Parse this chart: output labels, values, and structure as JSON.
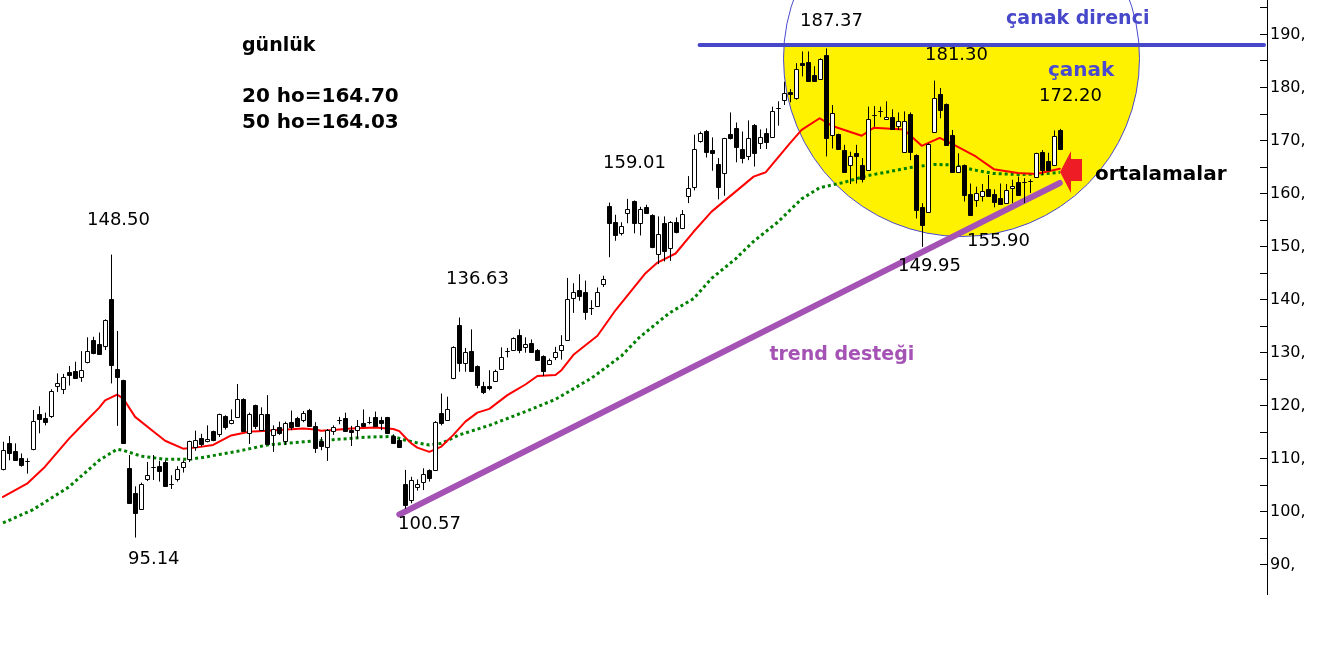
{
  "chart_data": {
    "type": "candlestick",
    "title": "günlük",
    "categories": [
      null,
      null,
      null,
      null,
      null,
      null,
      null,
      null,
      null,
      null,
      null,
      null,
      null,
      null,
      null,
      null,
      null,
      null,
      null,
      null,
      null,
      null,
      null,
      null,
      null,
      null,
      null,
      null,
      null,
      null,
      null,
      null,
      null,
      null,
      null,
      null,
      null,
      null,
      null,
      null,
      null,
      null,
      null,
      null,
      null,
      null,
      null,
      null,
      null,
      null,
      null,
      null,
      null,
      null,
      null,
      null,
      null,
      null,
      null,
      null,
      null,
      null,
      null,
      null,
      null,
      null,
      null,
      null,
      null,
      null,
      null,
      null,
      null,
      null,
      null,
      null,
      null,
      null,
      null,
      null,
      null,
      null,
      null,
      null,
      null,
      null,
      null,
      null,
      null,
      null,
      null,
      null,
      null,
      null,
      null,
      null,
      null,
      null,
      null,
      null,
      null,
      null,
      null,
      null,
      null,
      null,
      null,
      null,
      null,
      null,
      null,
      null,
      null,
      null,
      null,
      null,
      null,
      null,
      null,
      null,
      null,
      null,
      null,
      null,
      null,
      null,
      null,
      null,
      null,
      null,
      null,
      null,
      null,
      null,
      null,
      null,
      null,
      null,
      null,
      null,
      null,
      null,
      null,
      null,
      null,
      null,
      null,
      null,
      null,
      null,
      null,
      null,
      null,
      null,
      null,
      null,
      null,
      null,
      null,
      null,
      null,
      null,
      null,
      null,
      null,
      null,
      null,
      null,
      null,
      null,
      null,
      null,
      null,
      null,
      null,
      null,
      null,
      null,
      null,
      null,
      null,
      null,
      null,
      null,
      null,
      null,
      null,
      null,
      null,
      null,
      null,
      null,
      null,
      null,
      null,
      null,
      null,
      null,
      null,
      null,
      null,
      null,
      null,
      null,
      null,
      null,
      null,
      null,
      null,
      null,
      null
    ],
    "color": "#000000",
    "ohlc": [
      [
        108.0,
        113.2,
        107.8,
        111.6
      ],
      [
        112.9,
        114.3,
        109.7,
        111.1
      ],
      [
        111.4,
        112.9,
        109.6,
        109.7
      ],
      [
        110.1,
        111.0,
        108.5,
        108.9
      ],
      [
        109.6,
        110.1,
        107.2,
        109.6
      ],
      [
        111.8,
        119.2,
        111.6,
        117.2
      ],
      [
        118.4,
        119.9,
        114.8,
        117.5
      ],
      [
        117.7,
        118.7,
        116.3,
        117.0
      ],
      [
        118.1,
        123.1,
        117.7,
        122.8
      ],
      [
        123.8,
        126.1,
        122.6,
        124.2
      ],
      [
        123.1,
        126.0,
        122.2,
        125.4
      ],
      [
        126.3,
        127.5,
        123.8,
        125.7
      ],
      [
        126.5,
        128.3,
        125.2,
        125.3
      ],
      [
        125.5,
        130.3,
        124.5,
        126.7
      ],
      [
        128.2,
        132.9,
        128.0,
        130.4
      ],
      [
        132.4,
        133.0,
        129.7,
        130.0
      ],
      [
        131.6,
        133.8,
        129.6,
        129.7
      ],
      [
        131.2,
        136.3,
        130.5,
        136.1
      ],
      [
        140.1,
        148.5,
        124.2,
        127.7
      ],
      [
        126.9,
        134.1,
        116.2,
        125.5
      ],
      [
        124.8,
        124.9,
        112.9,
        113.0
      ],
      [
        108.2,
        110.7,
        101.6,
        101.7
      ],
      [
        103.5,
        104.8,
        95.14,
        99.8
      ],
      [
        100.6,
        105.5,
        100.5,
        105.3
      ],
      [
        106.1,
        109.4,
        105.8,
        107.0
      ],
      [
        108.5,
        110.7,
        106.0,
        108.5
      ],
      [
        108.6,
        109.6,
        105.7,
        107.7
      ],
      [
        109.4,
        109.7,
        104.8,
        104.9
      ],
      [
        105.3,
        106.9,
        104.3,
        105.3
      ],
      [
        106.1,
        108.6,
        105.7,
        108.0
      ],
      [
        108.5,
        109.7,
        107.4,
        109.3
      ],
      [
        110.0,
        113.4,
        109.4,
        113.3
      ],
      [
        112.3,
        115.3,
        111.5,
        113.5
      ],
      [
        114.0,
        114.7,
        112.3,
        112.8
      ],
      [
        113.3,
        116.3,
        113.1,
        113.8
      ],
      [
        115.2,
        115.3,
        113.3,
        113.5
      ],
      [
        114.6,
        118.5,
        114.1,
        118.4
      ],
      [
        118.0,
        118.2,
        115.5,
        116.0
      ],
      [
        116.7,
        119.3,
        116.5,
        117.3
      ],
      [
        117.9,
        124.1,
        117.7,
        121.2
      ],
      [
        121.2,
        121.4,
        115.1,
        115.2
      ],
      [
        114.8,
        118.7,
        112.8,
        118.5
      ],
      [
        120.1,
        120.2,
        115.6,
        116.2
      ],
      [
        115.4,
        119.7,
        115.3,
        118.4
      ],
      [
        118.5,
        122.0,
        112.6,
        112.8
      ],
      [
        114.5,
        116.3,
        111.3,
        115.7
      ],
      [
        115.9,
        117.0,
        114.5,
        114.9
      ],
      [
        113.4,
        117.0,
        112.6,
        116.7
      ],
      [
        116.9,
        119.1,
        115.4,
        116.0
      ],
      [
        117.6,
        117.9,
        116.0,
        116.2
      ],
      [
        117.3,
        119.0,
        116.9,
        118.7
      ],
      [
        119.2,
        119.4,
        116.0,
        116.2
      ],
      [
        116.2,
        116.9,
        111.1,
        112.1
      ],
      [
        113.3,
        114.1,
        111.6,
        112.5
      ],
      [
        112.3,
        115.6,
        109.6,
        115.5
      ],
      [
        115.3,
        116.3,
        114.5,
        116.0
      ],
      [
        117.3,
        117.9,
        116.5,
        117.3
      ],
      [
        117.6,
        118.7,
        115.1,
        115.2
      ],
      [
        115.5,
        116.2,
        112.4,
        115.0
      ],
      [
        115.4,
        117.3,
        113.8,
        116.2
      ],
      [
        116.7,
        119.3,
        116.0,
        116.2
      ],
      [
        117.0,
        117.9,
        116.5,
        117.0
      ],
      [
        117.8,
        118.9,
        116.0,
        116.2
      ],
      [
        117.4,
        117.9,
        115.4,
        116.8
      ],
      [
        117.8,
        117.9,
        114.8,
        114.9
      ],
      [
        114.3,
        114.6,
        112.8,
        113.0
      ],
      [
        113.5,
        113.8,
        112.1,
        112.3
      ],
      [
        105.3,
        107.9,
        100.57,
        101.3
      ],
      [
        102.2,
        106.6,
        101.6,
        106.0
      ],
      [
        104.6,
        106.1,
        104.0,
        105.3
      ],
      [
        105.7,
        108.2,
        104.1,
        107.2
      ],
      [
        107.9,
        108.0,
        105.7,
        106.4
      ],
      [
        107.9,
        117.1,
        107.7,
        117.0
      ],
      [
        118.7,
        122.3,
        116.3,
        116.7
      ],
      [
        117.4,
        121.7,
        117.3,
        119.3
      ],
      [
        125.2,
        131.2,
        125.0,
        131.1
      ],
      [
        135.2,
        136.63,
        126.4,
        128.0
      ],
      [
        128.0,
        130.9,
        126.4,
        130.1
      ],
      [
        130.3,
        134.4,
        126.4,
        126.6
      ],
      [
        127.5,
        127.6,
        123.3,
        124.0
      ],
      [
        123.7,
        124.5,
        122.2,
        122.6
      ],
      [
        123.7,
        126.7,
        122.9,
        123.3
      ],
      [
        124.6,
        126.8,
        124.5,
        126.5
      ],
      [
        127.0,
        131.0,
        126.8,
        129.1
      ],
      [
        130.3,
        130.9,
        129.1,
        130.3
      ],
      [
        130.6,
        132.9,
        130.5,
        132.7
      ],
      [
        133.3,
        134.4,
        129.9,
        130.6
      ],
      [
        131.0,
        132.9,
        130.0,
        131.6
      ],
      [
        131.8,
        132.5,
        130.0,
        130.1
      ],
      [
        130.5,
        130.7,
        128.5,
        128.6
      ],
      [
        129.4,
        129.5,
        125.6,
        126.6
      ],
      [
        127.8,
        128.9,
        127.7,
        128.6
      ],
      [
        129.1,
        131.1,
        128.6,
        130.1
      ],
      [
        130.6,
        133.3,
        128.7,
        131.4
      ],
      [
        132.4,
        144.1,
        132.3,
        140.2
      ],
      [
        140.4,
        143.1,
        137.5,
        141.5
      ],
      [
        141.9,
        144.8,
        139.8,
        140.7
      ],
      [
        141.4,
        143.6,
        136.2,
        137.6
      ],
      [
        138.5,
        139.9,
        137.1,
        138.5
      ],
      [
        138.8,
        142.3,
        138.7,
        141.5
      ],
      [
        143.0,
        144.5,
        142.4,
        143.8
      ],
      [
        157.7,
        158.3,
        148.0,
        154.5
      ],
      [
        154.6,
        156.0,
        151.1,
        152.1
      ],
      [
        152.5,
        154.6,
        152.1,
        153.9
      ],
      [
        156.3,
        159.01,
        154.4,
        157.0
      ],
      [
        158.6,
        158.7,
        152.5,
        154.4
      ],
      [
        154.4,
        157.5,
        152.1,
        157.0
      ],
      [
        157.5,
        157.9,
        156.2,
        156.3
      ],
      [
        156.0,
        156.1,
        149.7,
        149.9
      ],
      [
        148.7,
        155.7,
        146.7,
        152.4
      ],
      [
        154.4,
        155.7,
        147.2,
        149.1
      ],
      [
        149.7,
        154.8,
        147.3,
        154.6
      ],
      [
        154.6,
        155.5,
        152.5,
        152.7
      ],
      [
        153.5,
        156.9,
        153.3,
        156.2
      ],
      [
        159.6,
        163.3,
        158.2,
        161.0
      ],
      [
        161.3,
        171.1,
        160.6,
        168.5
      ],
      [
        169.9,
        171.7,
        169.6,
        171.4
      ],
      [
        171.8,
        172.0,
        166.8,
        167.8
      ],
      [
        168.2,
        170.6,
        164.3,
        167.6
      ],
      [
        165.5,
        166.7,
        158.9,
        161.3
      ],
      [
        163.8,
        170.5,
        159.6,
        170.4
      ],
      [
        171.3,
        175.3,
        170.2,
        170.4
      ],
      [
        172.3,
        173.4,
        165.9,
        168.7
      ],
      [
        168.5,
        171.7,
        165.7,
        166.7
      ],
      [
        167.0,
        173.8,
        166.3,
        170.4
      ],
      [
        173.0,
        173.1,
        165.1,
        167.7
      ],
      [
        169.5,
        172.1,
        168.4,
        170.6
      ],
      [
        171.4,
        172.3,
        168.4,
        169.7
      ],
      [
        170.6,
        176.4,
        170.5,
        175.5
      ],
      [
        176.1,
        177.4,
        172.8,
        176.1
      ],
      [
        177.7,
        181.1,
        176.7,
        178.9
      ],
      [
        179.1,
        179.7,
        177.2,
        178.7
      ],
      [
        178.0,
        184.6,
        177.7,
        183.5
      ],
      [
        184.6,
        186.8,
        182.1,
        184.3
      ],
      [
        184.8,
        186.8,
        181.2,
        181.3
      ],
      [
        182.4,
        184.0,
        181.2,
        181.3
      ],
      [
        181.6,
        185.5,
        181.5,
        185.3
      ],
      [
        186.2,
        187.37,
        167.0,
        170.4
      ],
      [
        171.1,
        176.7,
        168.5,
        175.2
      ],
      [
        171.2,
        171.3,
        168.4,
        168.5
      ],
      [
        168.2,
        169.2,
        164.0,
        164.1
      ],
      [
        165.4,
        167.9,
        161.8,
        167.0
      ],
      [
        167.6,
        169.2,
        161.9,
        167.0
      ],
      [
        165.4,
        166.7,
        162.1,
        162.7
      ],
      [
        164.5,
        176.4,
        164.3,
        174.0
      ],
      [
        174.8,
        176.5,
        172.6,
        174.8
      ],
      [
        175.5,
        176.4,
        174.4,
        175.5
      ],
      [
        174.0,
        177.4,
        173.9,
        174.5
      ],
      [
        174.4,
        175.9,
        172.0,
        172.1
      ],
      [
        172.8,
        175.3,
        172.0,
        173.6
      ],
      [
        167.9,
        175.5,
        167.8,
        173.6
      ],
      [
        175.0,
        175.3,
        166.3,
        167.9
      ],
      [
        167.3,
        167.4,
        155.3,
        156.9
      ],
      [
        157.5,
        158.2,
        149.95,
        154.1
      ],
      [
        156.6,
        169.5,
        156.5,
        169.4
      ],
      [
        171.7,
        181.3,
        171.6,
        178.0
      ],
      [
        178.8,
        179.9,
        174.2,
        175.7
      ],
      [
        176.9,
        177.0,
        169.0,
        169.2
      ],
      [
        171.1,
        172.0,
        164.0,
        164.1
      ],
      [
        164.1,
        167.6,
        163.9,
        165.2
      ],
      [
        165.4,
        165.5,
        158.5,
        159.7
      ],
      [
        159.9,
        161.9,
        155.9,
        156.0
      ],
      [
        158.8,
        161.3,
        157.5,
        160.2
      ],
      [
        159.6,
        161.8,
        158.5,
        160.4
      ],
      [
        160.8,
        163.5,
        159.5,
        159.6
      ],
      [
        159.9,
        160.8,
        157.4,
        158.5
      ],
      [
        159.1,
        161.9,
        157.9,
        158.0
      ],
      [
        158.3,
        161.8,
        158.2,
        160.6
      ],
      [
        161.0,
        162.6,
        158.2,
        161.4
      ],
      [
        162.1,
        163.2,
        159.6,
        159.7
      ],
      [
        162.1,
        162.9,
        158.2,
        162.1
      ],
      [
        162.3,
        162.7,
        160.1,
        162.3
      ],
      [
        163.2,
        167.7,
        163.1,
        167.6
      ],
      [
        167.9,
        168.2,
        163.5,
        164.5
      ],
      [
        166.2,
        167.7,
        164.3,
        164.5
      ],
      [
        165.4,
        171.9,
        165.3,
        170.9
      ],
      [
        172.0,
        172.2,
        168.2,
        168.4
      ],
      null,
      null,
      null,
      null,
      null,
      null,
      null,
      null,
      null,
      null,
      null,
      null,
      null,
      null,
      null,
      null,
      null,
      null,
      null,
      null,
      null,
      null,
      null,
      null,
      null,
      null,
      null,
      null,
      null,
      null,
      null,
      null,
      null,
      null
    ],
    "series": [
      {
        "type": "line",
        "color": "#ff0000",
        "values": [
          102.8,
          null,
          null,
          null,
          105.3,
          null,
          null,
          108.5,
          null,
          null,
          null,
          113.8,
          null,
          null,
          117.3,
          null,
          119.6,
          121.0,
          null,
          122.1,
          121.4,
          null,
          117.9,
          null,
          null,
          115.2,
          null,
          113.4,
          null,
          null,
          111.9,
          null,
          112.1,
          null,
          null,
          112.6,
          null,
          null,
          114.4,
          null,
          null,
          115.1,
          null,
          null,
          115.3,
          null,
          null,
          null,
          null,
          null,
          115.7,
          null,
          115.5,
          115.3,
          null,
          115.4,
          null,
          null,
          115.7,
          null,
          null,
          null,
          115.9,
          null,
          null,
          115.6,
          115.2,
          114.0,
          112.9,
          112.1,
          null,
          111.3,
          null,
          112.3,
          null,
          114.5,
          null,
          117.0,
          null,
          118.7,
          null,
          119.4,
          null,
          null,
          122.0,
          null,
          null,
          124.0,
          null,
          125.6,
          null,
          null,
          125.8,
          126.7,
          null,
          129.6,
          null,
          null,
          null,
          133.2,
          null,
          null,
          138.0,
          null,
          null,
          null,
          null,
          145.0,
          null,
          147.0,
          null,
          null,
          148.7,
          null,
          null,
          152.8,
          null,
          null,
          156.6,
          null,
          null,
          null,
          null,
          null,
          null,
          163.2,
          null,
          164.0,
          null,
          null,
          null,
          169.4,
          null,
          172.0,
          null,
          null,
          174.2,
          null,
          172.8,
          null,
          null,
          null,
          null,
          170.9,
          null,
          172.4,
          null,
          null,
          null,
          null,
          172.1,
          null,
          null,
          169.0,
          null,
          null,
          170.5,
          null,
          169.4,
          null,
          null,
          null,
          167.0,
          null,
          null,
          164.6,
          null,
          null,
          null,
          163.9,
          null,
          null,
          163.7,
          null,
          null,
          null,
          164.7,
          null,
          null,
          null,
          null,
          null,
          null,
          null,
          null,
          null,
          null,
          null,
          null,
          null,
          null,
          null,
          null,
          null,
          null,
          null,
          null,
          null,
          null,
          null,
          null,
          null,
          null,
          null,
          null,
          null,
          null,
          null,
          null,
          null,
          null
        ]
      },
      {
        "type": "line",
        "color": "#008000",
        "line_style": "dotted",
        "values": [
          97.9,
          null,
          null,
          null,
          null,
          100.4,
          null,
          null,
          null,
          null,
          null,
          104.7,
          null,
          null,
          null,
          null,
          109.7,
          null,
          null,
          111.8,
          111.6,
          null,
          null,
          110.5,
          null,
          null,
          null,
          109.9,
          null,
          null,
          null,
          109.9,
          null,
          110.2,
          null,
          null,
          110.8,
          null,
          null,
          111.4,
          null,
          null,
          null,
          null,
          112.6,
          null,
          null,
          null,
          null,
          null,
          113.2,
          null,
          null,
          null,
          null,
          113.6,
          null,
          null,
          null,
          null,
          null,
          114.1,
          null,
          null,
          null,
          114.2,
          null,
          113.5,
          null,
          113.0,
          null,
          112.6,
          null,
          112.9,
          null,
          null,
          114.5,
          null,
          null,
          null,
          null,
          116.3,
          null,
          null,
          null,
          null,
          null,
          118.9,
          null,
          null,
          null,
          null,
          121.2,
          null,
          null,
          null,
          null,
          null,
          125.2,
          null,
          null,
          null,
          null,
          129.4,
          null,
          null,
          132.9,
          null,
          null,
          null,
          null,
          137.5,
          null,
          null,
          null,
          140.2,
          null,
          null,
          144.0,
          null,
          null,
          null,
          147.7,
          null,
          null,
          151.0,
          null,
          null,
          null,
          154.6,
          null,
          null,
          null,
          159.0,
          null,
          null,
          161.1,
          null,
          null,
          null,
          162.1,
          null,
          null,
          null,
          163.4,
          null,
          null,
          164.0,
          null,
          null,
          null,
          164.9,
          null,
          null,
          null,
          165.5,
          null,
          null,
          165.4,
          null,
          null,
          null,
          164.4,
          null,
          null,
          163.8,
          null,
          null,
          null,
          163.6,
          null,
          null,
          null,
          163.7,
          null,
          null,
          164.0,
          null,
          null,
          null,
          null,
          null,
          null,
          null,
          null,
          null,
          null,
          null,
          null,
          null,
          null,
          null,
          null,
          null,
          null,
          null,
          null,
          null,
          null,
          null,
          null,
          null,
          null,
          null,
          null,
          null,
          null,
          null,
          null,
          null,
          null
        ]
      },
      {
        "type": "line",
        "name": "trend desteği",
        "color": "#a552b5",
        "values": [
          null,
          null,
          null,
          null,
          null,
          null,
          null,
          null,
          null,
          null,
          null,
          null,
          null,
          null,
          null,
          null,
          null,
          null,
          null,
          null,
          null,
          null,
          null,
          null,
          null,
          null,
          null,
          null,
          null,
          null,
          null,
          null,
          null,
          null,
          null,
          null,
          null,
          null,
          null,
          null,
          null,
          null,
          null,
          null,
          null,
          null,
          null,
          null,
          null,
          null,
          null,
          null,
          null,
          null,
          null,
          null,
          null,
          null,
          null,
          null,
          null,
          null,
          null,
          null,
          null,
          null,
          99.5,
          null,
          null,
          null,
          null,
          null,
          null,
          null,
          null,
          null,
          null,
          null,
          null,
          null,
          null,
          null,
          null,
          null,
          null,
          null,
          null,
          null,
          null,
          null,
          null,
          null,
          null,
          null,
          null,
          null,
          null,
          null,
          null,
          null,
          null,
          null,
          null,
          null,
          null,
          null,
          null,
          null,
          null,
          null,
          null,
          null,
          null,
          null,
          null,
          null,
          null,
          null,
          null,
          null,
          null,
          null,
          null,
          null,
          null,
          null,
          null,
          null,
          null,
          null,
          null,
          null,
          null,
          null,
          null,
          null,
          null,
          null,
          null,
          null,
          null,
          null,
          null,
          null,
          null,
          null,
          null,
          null,
          null,
          null,
          null,
          null,
          null,
          null,
          null,
          null,
          null,
          null,
          null,
          null,
          null,
          null,
          null,
          null,
          null,
          null,
          null,
          null,
          null,
          null,
          null,
          null,
          null,
          null,
          null,
          null,
          162.0,
          null,
          null,
          null,
          null,
          null,
          null,
          null,
          null,
          null,
          null,
          null,
          null,
          null,
          null,
          null,
          null,
          null,
          null,
          null,
          null,
          null,
          null,
          null,
          null,
          null,
          null,
          null,
          null,
          null,
          null,
          null,
          null,
          null,
          null
        ]
      },
      {
        "type": "line",
        "name": "çanak direnci",
        "color": "#4747c9",
        "values": [
          null,
          null,
          null,
          null,
          null,
          null,
          null,
          null,
          null,
          null,
          null,
          null,
          null,
          null,
          null,
          null,
          null,
          null,
          null,
          null,
          null,
          null,
          null,
          null,
          null,
          null,
          null,
          null,
          null,
          null,
          null,
          null,
          null,
          null,
          null,
          null,
          null,
          null,
          null,
          null,
          null,
          null,
          null,
          null,
          null,
          null,
          null,
          null,
          null,
          null,
          null,
          null,
          null,
          null,
          null,
          null,
          null,
          null,
          null,
          null,
          null,
          null,
          null,
          null,
          null,
          null,
          null,
          null,
          null,
          null,
          null,
          null,
          null,
          null,
          null,
          null,
          null,
          null,
          null,
          null,
          null,
          null,
          null,
          null,
          null,
          null,
          null,
          null,
          null,
          null,
          null,
          null,
          null,
          null,
          null,
          null,
          null,
          null,
          null,
          null,
          null,
          null,
          null,
          null,
          null,
          null,
          null,
          null,
          null,
          null,
          null,
          null,
          null,
          null,
          null,
          null,
          188,
          null,
          null,
          null,
          null,
          null,
          null,
          null,
          null,
          null,
          null,
          null,
          null,
          null,
          null,
          null,
          null,
          null,
          null,
          null,
          null,
          null,
          null,
          null,
          null,
          null,
          null,
          null,
          null,
          null,
          null,
          null,
          null,
          null,
          null,
          null,
          null,
          null,
          null,
          null,
          null,
          null,
          null,
          null,
          null,
          null,
          null,
          null,
          null,
          null,
          null,
          null,
          null,
          null,
          null,
          null,
          null,
          null,
          null,
          null,
          null,
          null,
          null,
          null,
          null,
          null,
          null,
          null,
          null,
          null,
          null,
          null,
          null,
          null,
          null,
          null,
          null,
          null,
          null,
          null,
          null,
          null,
          null,
          null,
          null,
          null,
          null,
          null,
          null,
          null,
          null,
          null,
          null,
          null,
          188
        ]
      }
    ],
    "ylim": [
      84.5,
      196.5
    ],
    "yticks": [
      {
        "value": 90,
        "label": "90,"
      },
      {
        "value": 95,
        "label": null
      },
      {
        "value": 100,
        "label": "100,"
      },
      {
        "value": 105,
        "label": null
      },
      {
        "value": 110,
        "label": "110,"
      },
      {
        "value": 115,
        "label": null
      },
      {
        "value": 120,
        "label": "120,"
      },
      {
        "value": 125,
        "label": null
      },
      {
        "value": 130,
        "label": "130,"
      },
      {
        "value": 135,
        "label": null
      },
      {
        "value": 140,
        "label": "140,"
      },
      {
        "value": 145,
        "label": null
      },
      {
        "value": 150,
        "label": "150,"
      },
      {
        "value": 155,
        "label": null
      },
      {
        "value": 160,
        "label": "160,"
      },
      {
        "value": 165,
        "label": null
      },
      {
        "value": 170,
        "label": "170,"
      },
      {
        "value": 175,
        "label": null
      },
      {
        "value": 180,
        "label": "180,"
      },
      {
        "value": 185,
        "label": null
      },
      {
        "value": 190,
        "label": "190,"
      },
      {
        "value": 195,
        "label": null
      }
    ],
    "annotations": [
      "20 ho=164.70",
      "50 ho=164.03",
      "187.37",
      "181.30",
      "172.20",
      "159.01",
      "148.50",
      "136.63",
      "100.57",
      "95.14",
      "149.95",
      "155.90",
      "çanak",
      "ortalamalar"
    ],
    "tick_labels": "y",
    "legend": false,
    "grid": false
  }
}
